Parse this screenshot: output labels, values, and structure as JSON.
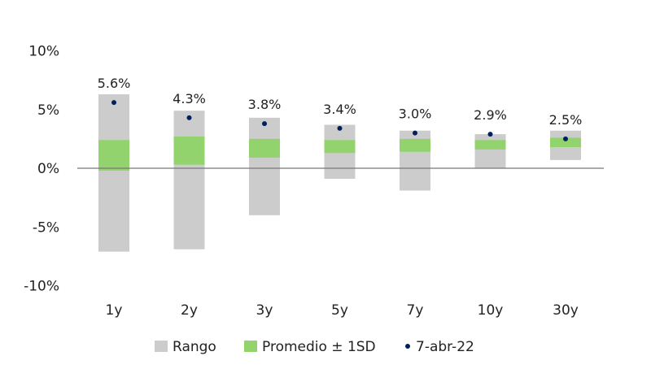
{
  "chart_data": {
    "type": "bar",
    "title": "",
    "xlabel": "",
    "ylabel": "",
    "ylim": [
      -10,
      10
    ],
    "yticks": [
      10,
      5,
      0,
      -5,
      -10
    ],
    "ytick_labels": [
      "10%",
      "5%",
      "0%",
      "-5%",
      "-10%"
    ],
    "categories": [
      "1y",
      "2y",
      "3y",
      "5y",
      "7y",
      "10y",
      "30y"
    ],
    "series": [
      {
        "name": "Rango",
        "color": "#cccccc",
        "low": [
          -7.1,
          -6.9,
          -4.0,
          -0.9,
          -1.9,
          0.0,
          0.7
        ],
        "high": [
          6.3,
          4.9,
          4.3,
          3.7,
          3.2,
          2.9,
          3.2
        ]
      },
      {
        "name": "Promedio ± 1SD",
        "color": "#92d36e",
        "low": [
          -0.2,
          0.3,
          0.9,
          1.3,
          1.4,
          1.6,
          1.8
        ],
        "high": [
          2.4,
          2.7,
          2.5,
          2.4,
          2.5,
          2.4,
          2.6
        ]
      },
      {
        "name": "7-abr-22",
        "color": "#002060",
        "values": [
          5.6,
          4.3,
          3.8,
          3.4,
          3.0,
          2.9,
          2.5
        ]
      }
    ],
    "data_labels": [
      "5.6%",
      "4.3%",
      "3.8%",
      "3.4%",
      "3.0%",
      "2.9%",
      "2.5%"
    ],
    "legend_position": "bottom",
    "grid": false
  }
}
